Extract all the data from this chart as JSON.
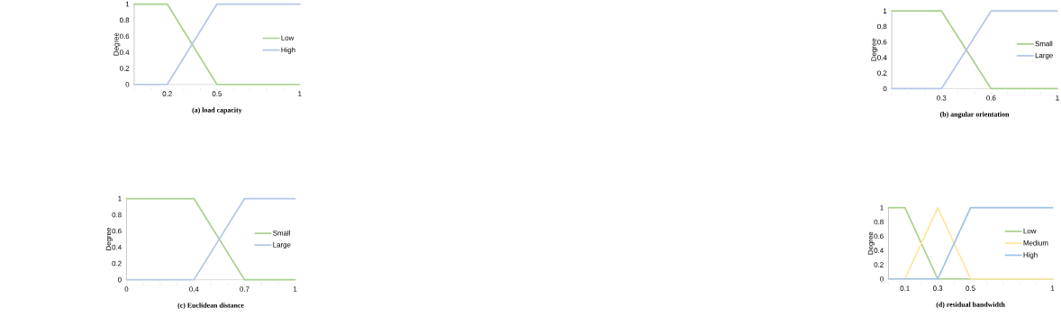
{
  "chart_data": [
    {
      "type": "line",
      "title": "(a) load capacity",
      "ylabel": "Degree",
      "xlim": [
        0,
        1
      ],
      "ylim": [
        0,
        1
      ],
      "xticks": [
        {
          "value": 0,
          "label": null
        },
        {
          "value": 0.1,
          "label": null
        },
        0.2,
        {
          "value": 0.3,
          "label": null
        },
        {
          "value": 0.4,
          "label": null
        },
        0.5,
        {
          "value": 0.6,
          "label": null
        },
        {
          "value": 0.7,
          "label": null
        },
        {
          "value": 0.8,
          "label": null
        },
        {
          "value": 0.9,
          "label": null
        },
        1
      ],
      "yticks": [
        0,
        0.2,
        0.4,
        0.6,
        0.8,
        1
      ],
      "grid": false,
      "legend": "right",
      "marker": "none",
      "line_style": "solid",
      "series": [
        {
          "name": "Low",
          "color": "#a9d18e",
          "x": [
            0,
            0.2,
            0.5,
            1
          ],
          "values": [
            1,
            1,
            0,
            0
          ]
        },
        {
          "name": "High",
          "color": "#b4c7e7",
          "x": [
            0,
            0.2,
            0.5,
            1
          ],
          "values": [
            0,
            0,
            1,
            1
          ]
        }
      ]
    },
    {
      "type": "line",
      "title": "(b) angular orientation",
      "ylabel": "Degree",
      "xlim": [
        0,
        1
      ],
      "ylim": [
        0,
        1
      ],
      "xticks": [
        {
          "value": 0,
          "label": null
        },
        {
          "value": 0.1,
          "label": null
        },
        {
          "value": 0.2,
          "label": null
        },
        0.3,
        {
          "value": 0.4,
          "label": null
        },
        {
          "value": 0.5,
          "label": null
        },
        0.6,
        {
          "value": 0.7,
          "label": null
        },
        {
          "value": 0.8,
          "label": null
        },
        {
          "value": 0.9,
          "label": null
        },
        1
      ],
      "yticks": [
        0,
        0.2,
        0.4,
        0.6,
        0.8,
        1
      ],
      "grid": false,
      "legend": "right",
      "marker": "none",
      "line_style": "solid",
      "series": [
        {
          "name": "Small",
          "color": "#a9d18e",
          "x": [
            0,
            0.3,
            0.6,
            1
          ],
          "values": [
            1,
            1,
            0,
            0
          ]
        },
        {
          "name": "Large",
          "color": "#b4c7e7",
          "x": [
            0,
            0.3,
            0.6,
            1
          ],
          "values": [
            0,
            0,
            1,
            1
          ]
        }
      ]
    },
    {
      "type": "line",
      "title": "(c) Euclidean distance",
      "ylabel": "Degree",
      "xlim": [
        0,
        1
      ],
      "ylim": [
        0,
        1
      ],
      "xticks": [
        0,
        {
          "value": 0.1,
          "label": null
        },
        {
          "value": 0.2,
          "label": null
        },
        {
          "value": 0.3,
          "label": null
        },
        0.4,
        {
          "value": 0.5,
          "label": null
        },
        {
          "value": 0.6,
          "label": null
        },
        0.7,
        {
          "value": 0.8,
          "label": null
        },
        {
          "value": 0.9,
          "label": null
        },
        1
      ],
      "yticks": [
        0,
        0.2,
        0.4,
        0.6,
        0.8,
        1
      ],
      "grid": false,
      "legend": "right",
      "marker": "none",
      "line_style": "solid",
      "series": [
        {
          "name": "Small",
          "color": "#a9d18e",
          "x": [
            0,
            0.4,
            0.7,
            1
          ],
          "values": [
            1,
            1,
            0,
            0
          ]
        },
        {
          "name": "Large",
          "color": "#b4c7e7",
          "x": [
            0,
            0.4,
            0.7,
            1
          ],
          "values": [
            0,
            0,
            1,
            1
          ]
        }
      ]
    },
    {
      "type": "line",
      "title": "(d) residual bandwidth",
      "ylabel": "Degree",
      "xlim": [
        0,
        1
      ],
      "ylim": [
        0,
        1
      ],
      "xticks": [
        {
          "value": 0,
          "label": null
        },
        0.1,
        {
          "value": 0.2,
          "label": null
        },
        0.3,
        {
          "value": 0.4,
          "label": null
        },
        0.5,
        {
          "value": 0.6,
          "label": null
        },
        {
          "value": 0.7,
          "label": null
        },
        {
          "value": 0.8,
          "label": null
        },
        {
          "value": 0.9,
          "label": null
        },
        1
      ],
      "yticks": [
        0,
        0.2,
        0.4,
        0.6,
        0.8,
        1
      ],
      "grid": false,
      "legend": "right",
      "marker": "none",
      "line_style": "solid",
      "series": [
        {
          "name": "Low",
          "color": "#a9d18e",
          "x": [
            0,
            0.1,
            0.3,
            0.5,
            1
          ],
          "values": [
            1,
            1,
            0,
            0,
            0
          ]
        },
        {
          "name": "Medium",
          "color": "#ffe699",
          "x": [
            0,
            0.1,
            0.3,
            0.5,
            1
          ],
          "values": [
            0,
            0,
            1,
            0,
            0
          ]
        },
        {
          "name": "High",
          "color": "#9dc3e6",
          "x": [
            0,
            0.3,
            0.5,
            1
          ],
          "values": [
            0,
            0,
            1,
            1
          ]
        }
      ]
    }
  ]
}
